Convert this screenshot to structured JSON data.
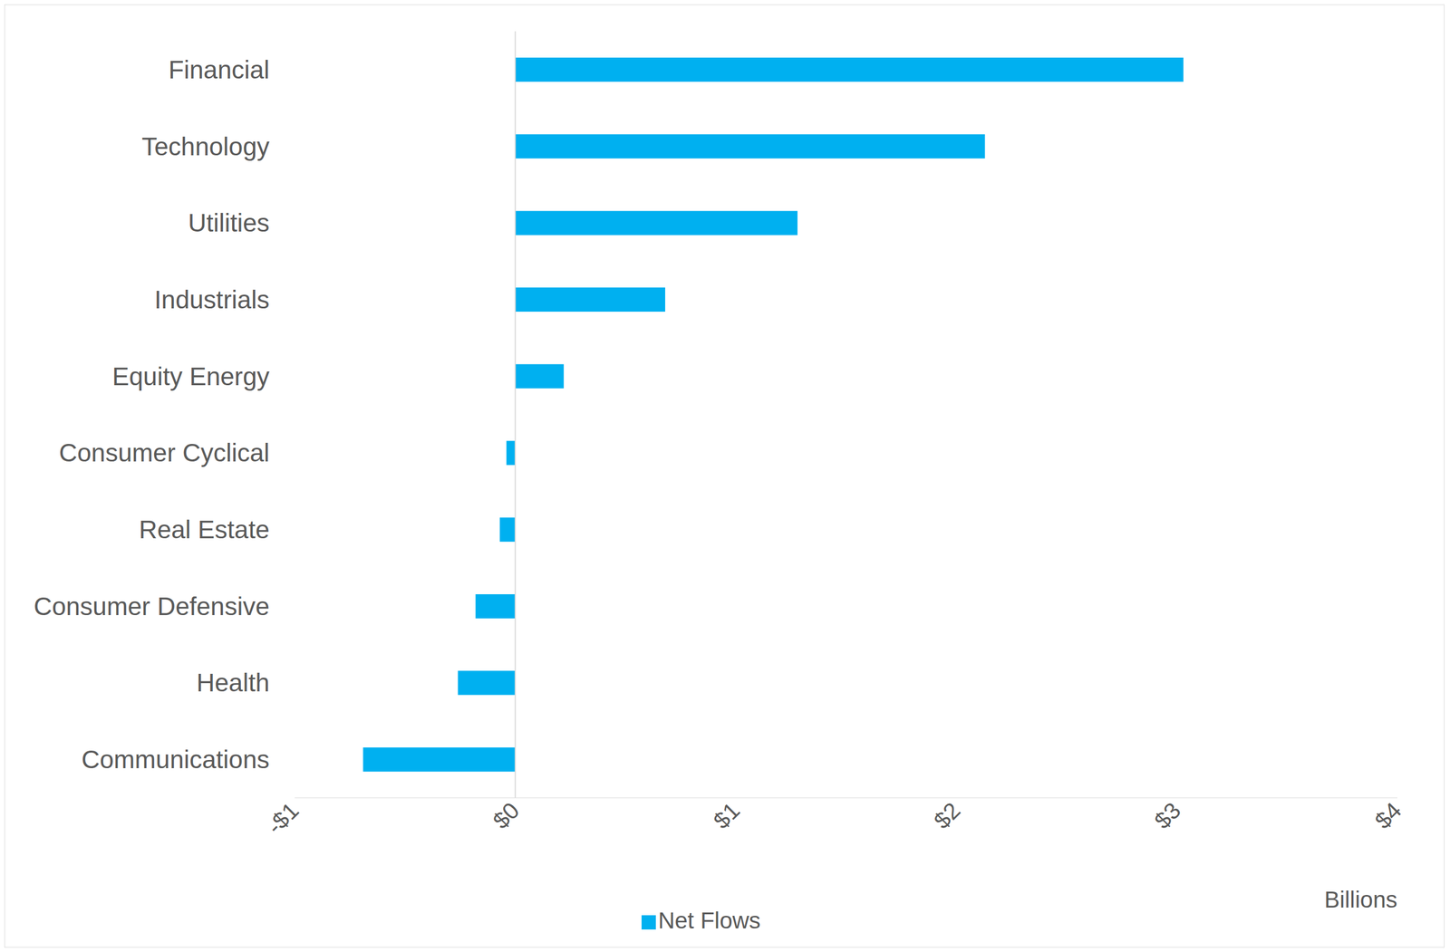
{
  "chart_data": {
    "type": "bar",
    "orientation": "horizontal",
    "categories": [
      "Financial",
      "Technology",
      "Utilities",
      "Industrials",
      "Equity Energy",
      "Consumer Cyclical",
      "Real Estate",
      "Consumer Defensive",
      "Health",
      "Communications"
    ],
    "series": [
      {
        "name": "Net Flows",
        "color": "#00b0f0",
        "values": [
          3.03,
          2.13,
          1.28,
          0.68,
          0.22,
          -0.04,
          -0.07,
          -0.18,
          -0.26,
          -0.69
        ]
      }
    ],
    "x_label": "Billions",
    "xlim": [
      -1,
      4
    ],
    "xticks": [
      {
        "value": -1,
        "label": "-$1"
      },
      {
        "value": 0,
        "label": "$0"
      },
      {
        "value": 1,
        "label": "$1"
      },
      {
        "value": 2,
        "label": "$2"
      },
      {
        "value": 3,
        "label": "$3"
      },
      {
        "value": 4,
        "label": "$4"
      }
    ],
    "grid": false,
    "legend": "bottom"
  }
}
